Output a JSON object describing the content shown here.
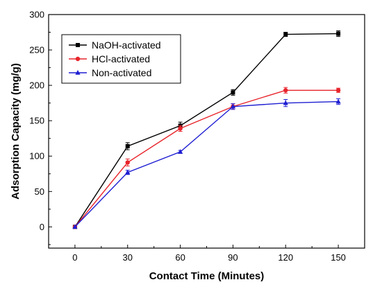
{
  "chart_data": {
    "type": "line",
    "title": "",
    "xlabel": "Contact Time (Minutes)",
    "ylabel": "Adsorption Capacity (mg/g)",
    "x": [
      0,
      30,
      60,
      90,
      120,
      150
    ],
    "xlim": [
      -15,
      165
    ],
    "ylim": [
      -30,
      300
    ],
    "xticks": [
      0,
      30,
      60,
      90,
      120,
      150
    ],
    "yticks": [
      0,
      50,
      100,
      150,
      200,
      250,
      300
    ],
    "grid": false,
    "legend_position": "top-left",
    "series": [
      {
        "name": "NaOH-activated",
        "color": "#000000",
        "marker": "square",
        "values": [
          0,
          114,
          143,
          190,
          272,
          273
        ],
        "errors": [
          0,
          5,
          5,
          4,
          3,
          4
        ]
      },
      {
        "name": "HCl-activated",
        "color": "#e8242b",
        "marker": "circle",
        "values": [
          0,
          91,
          139,
          170,
          193,
          193
        ],
        "errors": [
          0,
          5,
          4,
          4,
          4,
          3
        ]
      },
      {
        "name": "Non-activated",
        "color": "#1e1ed2",
        "marker": "triangle",
        "values": [
          0,
          77,
          106,
          170,
          175,
          177
        ],
        "errors": [
          0,
          3,
          2,
          4,
          5,
          4
        ]
      }
    ]
  }
}
